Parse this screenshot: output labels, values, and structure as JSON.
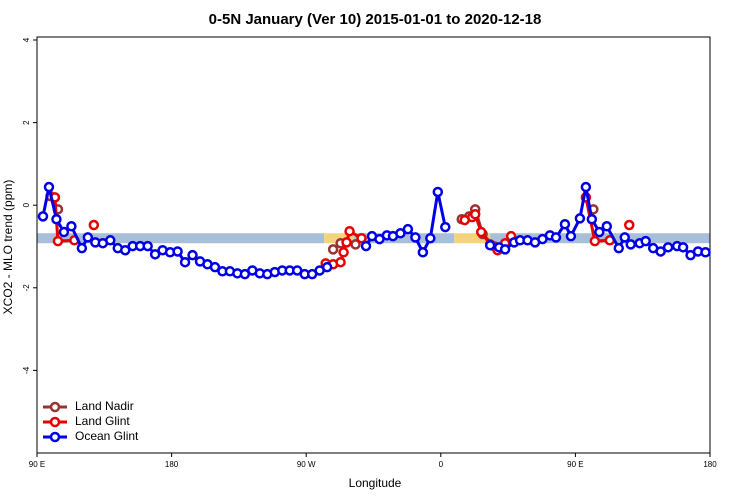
{
  "chart_data": {
    "type": "line",
    "title": "0-5N January (Ver 10)   2015-01-01 to 2020-12-18",
    "xlabel": "Longitude",
    "ylabel": "XCO2 - MLO trend (ppm)",
    "xlim": [
      90,
      540
    ],
    "ylim": [
      -6,
      4
    ],
    "xticks": [
      {
        "value": 90,
        "label": "90 E"
      },
      {
        "value": 180,
        "label": "180"
      },
      {
        "value": 270,
        "label": "90 W"
      },
      {
        "value": 360,
        "label": "0"
      },
      {
        "value": 450,
        "label": "90 E"
      },
      {
        "value": 540,
        "label": "180"
      }
    ],
    "yticks": [
      -4,
      -2,
      0,
      2,
      4
    ],
    "legend": "bottom-left",
    "band": {
      "y": -0.8,
      "segments": [
        {
          "color": "#a8bfd9",
          "x": [
            90,
            282
          ]
        },
        {
          "color": "#f5d37a",
          "x": [
            282,
            302
          ]
        },
        {
          "color": "#a8bfd9",
          "x": [
            302,
            369
          ]
        },
        {
          "color": "#f5d37a",
          "x": [
            369,
            393
          ]
        },
        {
          "color": "#a8bfd9",
          "x": [
            393,
            540
          ]
        }
      ]
    },
    "series": [
      {
        "name": "Land Nadir",
        "color": "#993333",
        "x": [
          99,
          104,
          200,
          288,
          293,
          303,
          340,
          374,
          379,
          383,
          388,
          396,
          430,
          462
        ],
        "values": [
          0.22,
          -0.1,
          null,
          -1.07,
          -0.92,
          -0.95,
          null,
          -0.34,
          -0.27,
          -0.1,
          -0.7,
          -1.0,
          null,
          -0.1
        ]
      },
      {
        "name": "Land Glint",
        "color": "#e60000",
        "x": [
          102,
          104,
          115,
          120,
          128,
          200,
          283,
          288,
          293,
          295,
          297,
          299,
          307,
          340,
          376,
          381,
          383,
          387,
          393,
          398,
          403,
          407,
          430,
          457,
          463,
          473,
          480,
          486
        ],
        "values": [
          0.19,
          -0.87,
          -0.85,
          null,
          -0.48,
          null,
          -1.41,
          -1.43,
          -1.38,
          -1.14,
          -0.9,
          -0.63,
          -0.8,
          null,
          -0.36,
          -0.29,
          -0.22,
          -0.65,
          -0.95,
          -1.09,
          -0.92,
          -0.75,
          null,
          0.19,
          -0.87,
          -0.85,
          null,
          -0.48
        ]
      },
      {
        "name": "Ocean Glint",
        "color": "#0000e6",
        "x": [
          94,
          98,
          103,
          108,
          113,
          120,
          124,
          129,
          134,
          139,
          144,
          149,
          154,
          159,
          164,
          169,
          174,
          179,
          184,
          189,
          194,
          199,
          204,
          209,
          214,
          219,
          224,
          229,
          234,
          239,
          244,
          249,
          254,
          259,
          264,
          269,
          274,
          279,
          284,
          300,
          310,
          314,
          319,
          324,
          328,
          333,
          338,
          343,
          348,
          353,
          358,
          363,
          380,
          393,
          399,
          403,
          409,
          413,
          418,
          423,
          428,
          433,
          437,
          443,
          447,
          453,
          457,
          461,
          466,
          471,
          479,
          483,
          487,
          493,
          497,
          502,
          507,
          512,
          518,
          522,
          527,
          532,
          537
        ],
        "values": [
          -0.27,
          0.44,
          -0.34,
          -0.65,
          -0.51,
          -1.04,
          -0.78,
          -0.9,
          -0.92,
          -0.85,
          -1.04,
          -1.09,
          -0.99,
          -0.99,
          -0.99,
          -1.19,
          -1.09,
          -1.14,
          -1.12,
          -1.38,
          -1.21,
          -1.36,
          -1.43,
          -1.5,
          -1.6,
          -1.6,
          -1.65,
          -1.67,
          -1.58,
          -1.65,
          -1.67,
          -1.62,
          -1.58,
          -1.58,
          -1.58,
          -1.67,
          -1.67,
          -1.58,
          -1.5,
          null,
          -0.99,
          -0.75,
          -0.82,
          -0.73,
          -0.75,
          -0.68,
          -0.58,
          -0.78,
          -1.14,
          -0.8,
          0.32,
          -0.53,
          null,
          -0.97,
          -1.02,
          -1.07,
          -0.9,
          -0.85,
          -0.85,
          -0.9,
          -0.82,
          -0.73,
          -0.78,
          -0.46,
          -0.75,
          -0.32,
          0.44,
          -0.34,
          -0.65,
          -0.51,
          -1.04,
          -0.78,
          -0.95,
          -0.92,
          -0.87,
          -1.04,
          -1.12,
          -1.02,
          -0.99,
          -1.02,
          -1.21,
          -1.12,
          -1.14
        ]
      }
    ]
  }
}
